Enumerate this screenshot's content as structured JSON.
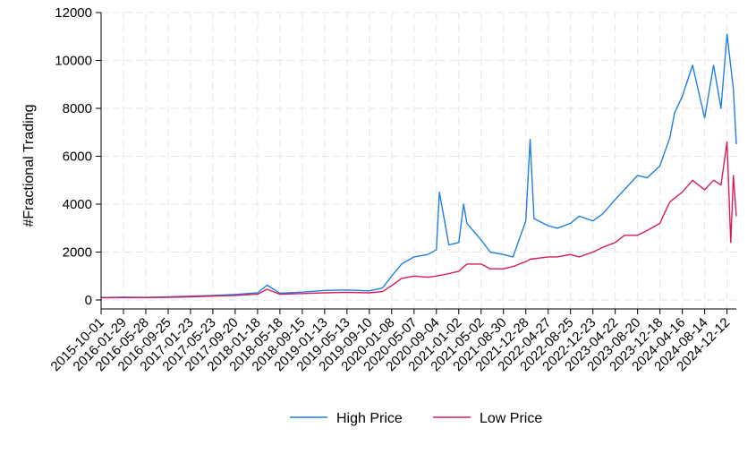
{
  "chart_data": {
    "type": "line",
    "title": "",
    "xlabel": "",
    "ylabel": "#Fractional Trading",
    "ylim": [
      0,
      12000
    ],
    "yticks": [
      0,
      2000,
      4000,
      6000,
      8000,
      10000,
      12000
    ],
    "ytick_labels": [
      "0",
      "2000",
      "4000",
      "6000",
      "8000",
      "10000",
      "12000"
    ],
    "xlim": [
      "2015-10-01",
      "2025-01-31"
    ],
    "xticks": [
      "2015-10-01",
      "2016-01-29",
      "2016-05-28",
      "2016-09-25",
      "2017-01-23",
      "2017-05-23",
      "2017-09-20",
      "2018-01-18",
      "2018-05-18",
      "2018-09-15",
      "2019-01-13",
      "2019-05-13",
      "2019-09-10",
      "2020-01-08",
      "2020-05-07",
      "2020-09-04",
      "2021-01-02",
      "2021-05-02",
      "2021-08-30",
      "2021-12-28",
      "2022-04-27",
      "2022-08-25",
      "2022-12-23",
      "2023-04-22",
      "2023-08-20",
      "2023-12-18",
      "2024-04-16",
      "2024-08-14",
      "2024-12-12"
    ],
    "grid": true,
    "legend_position": "bottom",
    "series": [
      {
        "name": "High Price",
        "color": "#1f7fe6",
        "x": [
          "2015-10-01",
          "2016-01-29",
          "2016-05-28",
          "2016-09-25",
          "2017-01-23",
          "2017-05-23",
          "2017-09-20",
          "2018-01-18",
          "2018-03-10",
          "2018-05-18",
          "2018-09-15",
          "2019-01-13",
          "2019-05-13",
          "2019-09-10",
          "2019-11-20",
          "2020-01-08",
          "2020-03-01",
          "2020-05-07",
          "2020-07-20",
          "2020-09-04",
          "2020-09-20",
          "2020-11-10",
          "2021-01-02",
          "2021-01-28",
          "2021-02-15",
          "2021-05-02",
          "2021-06-20",
          "2021-08-30",
          "2021-10-20",
          "2021-12-28",
          "2022-01-20",
          "2022-02-10",
          "2022-04-27",
          "2022-06-15",
          "2022-08-25",
          "2022-10-10",
          "2022-12-23",
          "2023-02-15",
          "2023-04-22",
          "2023-06-10",
          "2023-08-20",
          "2023-10-10",
          "2023-12-18",
          "2024-02-10",
          "2024-03-05",
          "2024-04-16",
          "2024-06-10",
          "2024-08-14",
          "2024-10-01",
          "2024-11-10",
          "2024-12-12",
          "2025-01-15",
          "2025-01-31"
        ],
        "y": [
          100,
          120,
          110,
          130,
          160,
          190,
          230,
          300,
          620,
          280,
          330,
          400,
          420,
          380,
          500,
          1000,
          1500,
          1800,
          1900,
          2100,
          4500,
          2300,
          2400,
          4000,
          3200,
          2500,
          2000,
          1900,
          1800,
          3300,
          6700,
          3400,
          3100,
          3000,
          3200,
          3500,
          3300,
          3600,
          4200,
          4600,
          5200,
          5100,
          5600,
          6800,
          7800,
          8500,
          9800,
          7600,
          9800,
          8000,
          11100,
          8800,
          6500
        ]
      },
      {
        "name": "Low Price",
        "color": "#d81b5a",
        "x": [
          "2015-10-01",
          "2016-01-29",
          "2016-05-28",
          "2016-09-25",
          "2017-01-23",
          "2017-05-23",
          "2017-09-20",
          "2018-01-18",
          "2018-03-10",
          "2018-05-18",
          "2018-09-15",
          "2019-01-13",
          "2019-05-13",
          "2019-09-10",
          "2019-11-20",
          "2020-01-08",
          "2020-03-01",
          "2020-05-07",
          "2020-07-20",
          "2020-09-04",
          "2020-11-10",
          "2021-01-02",
          "2021-02-15",
          "2021-05-02",
          "2021-06-20",
          "2021-08-30",
          "2021-10-20",
          "2021-12-28",
          "2022-01-20",
          "2022-04-27",
          "2022-06-15",
          "2022-08-25",
          "2022-10-10",
          "2022-12-23",
          "2023-02-15",
          "2023-04-22",
          "2023-06-10",
          "2023-08-20",
          "2023-10-10",
          "2023-12-18",
          "2024-01-10",
          "2024-02-10",
          "2024-04-16",
          "2024-06-10",
          "2024-08-14",
          "2024-10-01",
          "2024-11-10",
          "2024-12-12",
          "2025-01-01",
          "2025-01-15",
          "2025-01-31"
        ],
        "y": [
          90,
          100,
          100,
          110,
          130,
          160,
          190,
          240,
          450,
          240,
          270,
          300,
          320,
          300,
          350,
          600,
          900,
          1000,
          950,
          1000,
          1100,
          1200,
          1500,
          1500,
          1300,
          1300,
          1400,
          1600,
          1700,
          1800,
          1800,
          1900,
          1800,
          2000,
          2200,
          2400,
          2700,
          2700,
          2900,
          3200,
          3600,
          4100,
          4500,
          5000,
          4600,
          5000,
          4800,
          6600,
          2400,
          5200,
          3500
        ]
      }
    ]
  },
  "legend": {
    "items": [
      "High Price",
      "Low Price"
    ]
  }
}
